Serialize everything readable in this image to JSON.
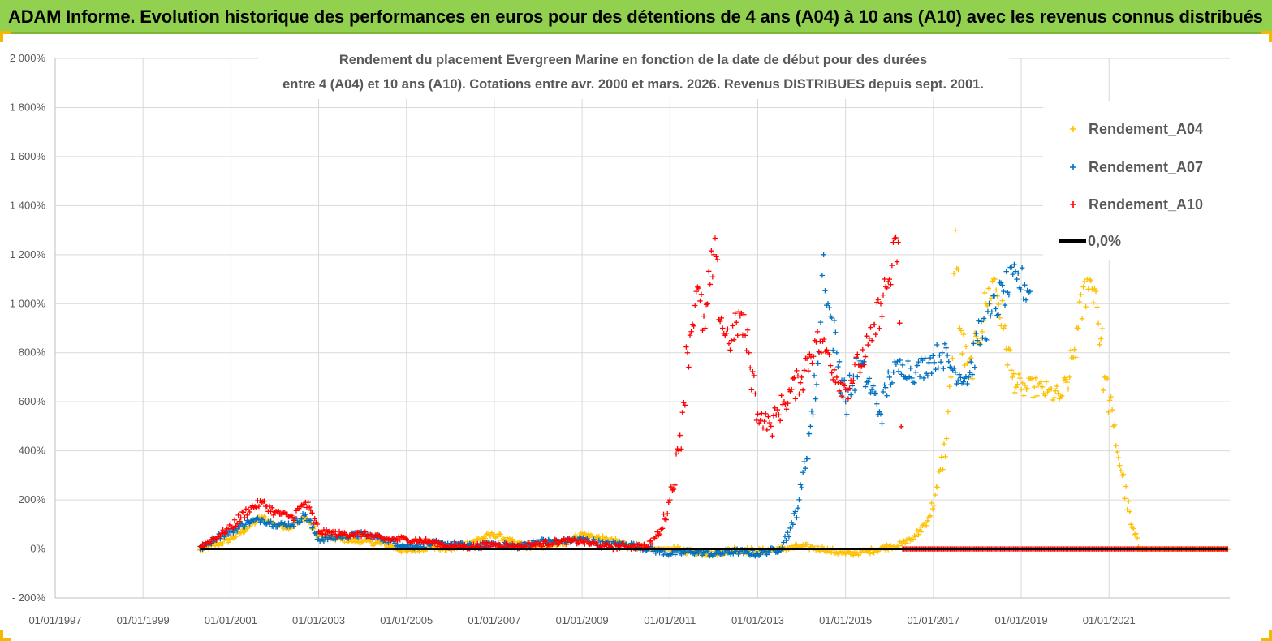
{
  "header": {
    "title": "ADAM Informe. Evolution historique des performances en euros pour des détentions de 4 ans (A04) à 10 ans (A10) avec les revenus connus distribués"
  },
  "colors": {
    "banner": "#92d050",
    "a04": "#ffc000",
    "a07": "#0070c0",
    "a10": "#ff0000",
    "zero": "#000000",
    "grid": "#d9d9d9"
  },
  "chart_data": {
    "type": "scatter",
    "title_lines": [
      "Rendement du placement Evergreen Marine  en fonction de la date de début pour des durées",
      "entre 4 (A04) et 10 ans (A10).  Cotations entre avr. 2000 et mars. 2026.  Revenus DISTRIBUES depuis sept. 2001."
    ],
    "x_axis": {
      "min_year": 1997.0,
      "max_year": 2023.75,
      "tick_years": [
        1997,
        1999,
        2001,
        2003,
        2005,
        2007,
        2009,
        2011,
        2013,
        2015,
        2017,
        2019,
        2021
      ],
      "tick_labels": [
        "01/01/1997",
        "01/01/1999",
        "01/01/2001",
        "01/01/2003",
        "01/01/2005",
        "01/01/2007",
        "01/01/2009",
        "01/01/2011",
        "01/01/2013",
        "01/01/2015",
        "01/01/2017",
        "01/01/2019",
        "01/01/2021"
      ]
    },
    "y_axis": {
      "min": -200,
      "max": 2000,
      "step": 200,
      "tick_labels": [
        "- 200%",
        "0%",
        "200%",
        "400%",
        "600%",
        "800%",
        "1 000%",
        "1 200%",
        "1 400%",
        "1 600%",
        "1 800%",
        "2 000%"
      ]
    },
    "legend_position": "top-right",
    "series": [
      {
        "name": "Rendement_A04",
        "color": "#ffc000",
        "marker": "+",
        "points": [
          [
            2000.3,
            -5
          ],
          [
            2000.7,
            20
          ],
          [
            2001.0,
            40
          ],
          [
            2001.4,
            90
          ],
          [
            2001.7,
            130
          ],
          [
            2002.0,
            100
          ],
          [
            2002.4,
            90
          ],
          [
            2002.7,
            130
          ],
          [
            2003.0,
            50
          ],
          [
            2003.5,
            40
          ],
          [
            2004.0,
            30
          ],
          [
            2004.5,
            20
          ],
          [
            2005.0,
            -10
          ],
          [
            2005.5,
            10
          ],
          [
            2006.0,
            0
          ],
          [
            2006.5,
            30
          ],
          [
            2007.0,
            60
          ],
          [
            2007.5,
            20
          ],
          [
            2008.0,
            10
          ],
          [
            2008.5,
            20
          ],
          [
            2009.0,
            60
          ],
          [
            2009.5,
            40
          ],
          [
            2010.0,
            20
          ],
          [
            2010.5,
            0
          ],
          [
            2011.0,
            0
          ],
          [
            2011.5,
            -10
          ],
          [
            2012.0,
            -20
          ],
          [
            2012.5,
            0
          ],
          [
            2013.0,
            -10
          ],
          [
            2013.5,
            0
          ],
          [
            2014.0,
            10
          ],
          [
            2014.5,
            0
          ],
          [
            2015.0,
            -20
          ],
          [
            2015.5,
            -10
          ],
          [
            2016.0,
            10
          ],
          [
            2016.3,
            20
          ],
          [
            2016.6,
            50
          ],
          [
            2016.9,
            130
          ],
          [
            2017.1,
            250
          ],
          [
            2017.3,
            450
          ],
          [
            2017.4,
            700
          ],
          [
            2017.5,
            1300
          ],
          [
            2017.6,
            900
          ],
          [
            2017.8,
            700
          ],
          [
            2018.0,
            850
          ],
          [
            2018.2,
            1000
          ],
          [
            2018.4,
            1100
          ],
          [
            2018.6,
            900
          ],
          [
            2018.8,
            700
          ],
          [
            2019.0,
            650
          ],
          [
            2019.3,
            660
          ],
          [
            2019.6,
            640
          ],
          [
            2019.9,
            620
          ],
          [
            2020.1,
            700
          ],
          [
            2020.3,
            900
          ],
          [
            2020.5,
            1100
          ],
          [
            2020.7,
            1050
          ],
          [
            2020.9,
            700
          ],
          [
            2021.1,
            500
          ],
          [
            2021.3,
            300
          ],
          [
            2021.5,
            100
          ],
          [
            2021.7,
            0
          ],
          [
            2022.0,
            0
          ],
          [
            2022.5,
            0
          ],
          [
            2023.0,
            0
          ],
          [
            2023.7,
            0
          ]
        ]
      },
      {
        "name": "Rendement_A07",
        "color": "#0070c0",
        "marker": "+",
        "points": [
          [
            2000.3,
            0
          ],
          [
            2000.7,
            50
          ],
          [
            2001.0,
            70
          ],
          [
            2001.4,
            110
          ],
          [
            2001.7,
            120
          ],
          [
            2002.0,
            100
          ],
          [
            2002.4,
            100
          ],
          [
            2002.7,
            140
          ],
          [
            2003.0,
            40
          ],
          [
            2003.5,
            50
          ],
          [
            2004.0,
            60
          ],
          [
            2004.5,
            40
          ],
          [
            2005.0,
            10
          ],
          [
            2005.5,
            20
          ],
          [
            2006.0,
            20
          ],
          [
            2006.5,
            10
          ],
          [
            2007.0,
            20
          ],
          [
            2007.5,
            10
          ],
          [
            2008.0,
            30
          ],
          [
            2008.5,
            30
          ],
          [
            2009.0,
            40
          ],
          [
            2009.5,
            20
          ],
          [
            2010.0,
            20
          ],
          [
            2010.5,
            0
          ],
          [
            2011.0,
            -20
          ],
          [
            2011.5,
            -10
          ],
          [
            2012.0,
            -20
          ],
          [
            2012.5,
            -10
          ],
          [
            2013.0,
            -20
          ],
          [
            2013.5,
            0
          ],
          [
            2013.8,
            100
          ],
          [
            2014.0,
            250
          ],
          [
            2014.2,
            500
          ],
          [
            2014.4,
            800
          ],
          [
            2014.5,
            1200
          ],
          [
            2014.6,
            1000
          ],
          [
            2014.8,
            800
          ],
          [
            2015.0,
            600
          ],
          [
            2015.3,
            750
          ],
          [
            2015.6,
            650
          ],
          [
            2015.8,
            550
          ],
          [
            2016.0,
            700
          ],
          [
            2016.3,
            750
          ],
          [
            2016.6,
            720
          ],
          [
            2016.9,
            760
          ],
          [
            2017.2,
            800
          ],
          [
            2017.5,
            720
          ],
          [
            2017.8,
            700
          ],
          [
            2018.0,
            850
          ],
          [
            2018.3,
            950
          ],
          [
            2018.6,
            1050
          ],
          [
            2018.9,
            1100
          ],
          [
            2019.2,
            1050
          ]
        ]
      },
      {
        "name": "Rendement_A10",
        "color": "#ff0000",
        "marker": "+",
        "points": [
          [
            2000.3,
            10
          ],
          [
            2000.7,
            50
          ],
          [
            2001.0,
            90
          ],
          [
            2001.4,
            160
          ],
          [
            2001.7,
            190
          ],
          [
            2002.0,
            150
          ],
          [
            2002.4,
            130
          ],
          [
            2002.7,
            190
          ],
          [
            2003.0,
            70
          ],
          [
            2003.5,
            60
          ],
          [
            2004.0,
            60
          ],
          [
            2004.5,
            40
          ],
          [
            2005.0,
            40
          ],
          [
            2005.5,
            30
          ],
          [
            2006.0,
            10
          ],
          [
            2006.5,
            10
          ],
          [
            2007.0,
            20
          ],
          [
            2007.5,
            10
          ],
          [
            2008.0,
            20
          ],
          [
            2008.5,
            30
          ],
          [
            2009.0,
            30
          ],
          [
            2009.5,
            10
          ],
          [
            2010.0,
            10
          ],
          [
            2010.5,
            10
          ],
          [
            2010.8,
            80
          ],
          [
            2011.0,
            200
          ],
          [
            2011.2,
            400
          ],
          [
            2011.4,
            800
          ],
          [
            2011.6,
            1050
          ],
          [
            2011.8,
            900
          ],
          [
            2012.0,
            1200
          ],
          [
            2012.2,
            900
          ],
          [
            2012.4,
            850
          ],
          [
            2012.6,
            950
          ],
          [
            2012.8,
            800
          ],
          [
            2013.0,
            550
          ],
          [
            2013.3,
            500
          ],
          [
            2013.6,
            600
          ],
          [
            2014.0,
            700
          ],
          [
            2014.3,
            850
          ],
          [
            2014.6,
            800
          ],
          [
            2014.8,
            700
          ],
          [
            2015.0,
            650
          ],
          [
            2015.3,
            750
          ],
          [
            2015.6,
            850
          ],
          [
            2015.8,
            1000
          ],
          [
            2016.0,
            1100
          ],
          [
            2016.2,
            1250
          ],
          [
            2016.3,
            0
          ],
          [
            2017.0,
            0
          ],
          [
            2018.0,
            0
          ],
          [
            2019.0,
            0
          ],
          [
            2020.0,
            0
          ],
          [
            2021.0,
            0
          ],
          [
            2022.0,
            0
          ],
          [
            2023.0,
            0
          ],
          [
            2023.7,
            0
          ]
        ]
      },
      {
        "name": "0,0%",
        "color": "#000000",
        "marker": "line",
        "points": [
          [
            2000.3,
            0
          ],
          [
            2023.7,
            0
          ]
        ]
      }
    ]
  }
}
